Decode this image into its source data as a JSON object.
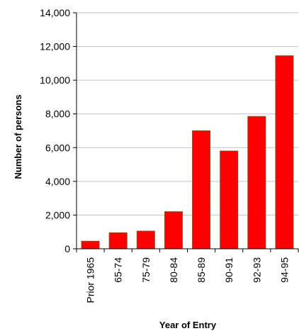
{
  "chart_data": {
    "type": "bar",
    "title": "",
    "xlabel": "Year of Entry",
    "ylabel": "Number of persons",
    "categories": [
      "Prior 1965",
      "65-74",
      "75-79",
      "80-84",
      "85-89",
      "90-91",
      "92-93",
      "94-95"
    ],
    "values": [
      450,
      950,
      1050,
      2200,
      7000,
      5800,
      7850,
      11450
    ],
    "ylim": [
      0,
      14000
    ],
    "yticks": [
      0,
      2000,
      4000,
      6000,
      8000,
      10000,
      12000,
      14000
    ],
    "ytick_labels": [
      "0",
      "2,000",
      "4,000",
      "6,000",
      "8,000",
      "10,000",
      "12,000",
      "14,000"
    ],
    "grid": true,
    "legend": "none",
    "colors": {
      "bar_fill": "#ff0000",
      "bar_stroke": "#8b4a2a",
      "grid": "#c0c0c0",
      "axis": "#000000"
    }
  }
}
